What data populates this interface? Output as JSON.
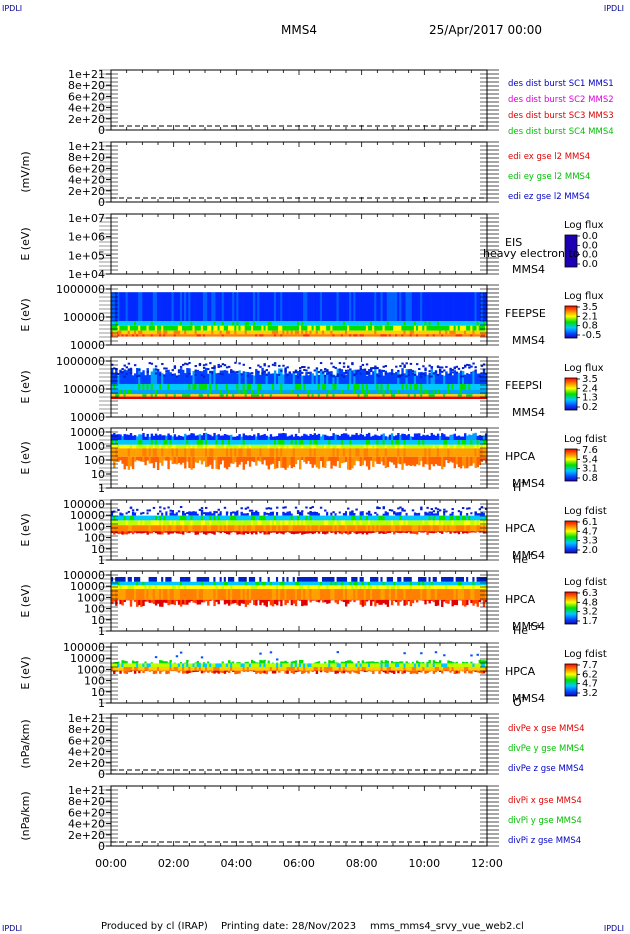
{
  "corners": {
    "tl": "IPDLI",
    "tr": "IPDLI",
    "bl": "IPDLI",
    "br": "IPDLI"
  },
  "header": {
    "mission": "MMS4",
    "date": "25/Apr/2017 00:00"
  },
  "footer": {
    "produced": "Produced by cl (IRAP)",
    "printing": "Printing date: 28/Nov/2023",
    "file": "mms_mms4_srvy_vue_web2.cl"
  },
  "colors": {
    "red": "#e00000",
    "green": "#00c000",
    "blue": "#0000c8",
    "magenta": "#e000e0",
    "axis": "#000000"
  },
  "chart_data": [
    {
      "type": "line",
      "id": "dist",
      "ylabel": "",
      "ticks": [
        "1e+21",
        "8e+20",
        "6e+20",
        "4e+20",
        "2e+20",
        "0"
      ],
      "legend": [
        {
          "text": "des dist burst SC1 MMS1",
          "color": "blue"
        },
        {
          "text": "des dist burst SC2 MMS2",
          "color": "magenta"
        },
        {
          "text": "des dist burst SC3 MMS3",
          "color": "red"
        },
        {
          "text": "des dist burst SC4 MMS4",
          "color": "green"
        }
      ]
    },
    {
      "type": "line",
      "id": "edi",
      "ylabel": "(mV/m)",
      "ticks": [
        "1e+21",
        "8e+20",
        "6e+20",
        "4e+20",
        "2e+20",
        "0"
      ],
      "legend": [
        {
          "text": "edi ex gse l2 MMS4",
          "color": "red"
        },
        {
          "text": "edi ey gse l2 MMS4",
          "color": "green"
        },
        {
          "text": "edi ez gse l2 MMS4",
          "color": "blue"
        }
      ]
    },
    {
      "type": "heatmap",
      "id": "eis",
      "ylabel": "E (eV)",
      "ticks": [
        "1e+07",
        "1e+06",
        "1e+05",
        "1e+04"
      ],
      "labels": [
        "EIS",
        "MMS4"
      ],
      "overlay": "heavy electron to",
      "cbtitle": "Log flux",
      "cbticks": [
        "0.0",
        "0.0",
        "0.0",
        "0.0"
      ],
      "empty": true
    },
    {
      "type": "heatmap",
      "id": "feepse",
      "ylabel": "E (eV)",
      "ticks": [
        "1000000",
        "100000",
        "10000"
      ],
      "labels": [
        "FEEPSE",
        "MMS4"
      ],
      "cbtitle": "Log flux",
      "cbticks": [
        "3.5",
        "2.1",
        "0.8",
        "-0.5"
      ]
    },
    {
      "type": "heatmap",
      "id": "feepsi",
      "ylabel": "E (eV)",
      "ticks": [
        "1000000",
        "100000",
        "10000"
      ],
      "labels": [
        "FEEPSI",
        "MMS4"
      ],
      "cbtitle": "Log flux",
      "cbticks": [
        "3.5",
        "2.4",
        "1.3",
        "0.2"
      ]
    },
    {
      "type": "heatmap",
      "id": "hpca_h",
      "ylabel": "E (eV)",
      "ticks": [
        "10000",
        "1000",
        "100",
        "10",
        "1"
      ],
      "labels": [
        "HPCA",
        "MMS4"
      ],
      "species": "H",
      "charge": "+",
      "cbtitle": "Log fdist",
      "cbticks": [
        "7.6",
        "5.4",
        "3.1",
        "0.8"
      ]
    },
    {
      "type": "heatmap",
      "id": "hpca_he",
      "ylabel": "E (eV)",
      "ticks": [
        "100000",
        "10000",
        "1000",
        "100",
        "10",
        "1"
      ],
      "labels": [
        "HPCA",
        "MMS4"
      ],
      "species": "He",
      "charge": "+",
      "cbtitle": "Log fdist",
      "cbticks": [
        "6.1",
        "4.7",
        "3.3",
        "2.0"
      ]
    },
    {
      "type": "heatmap",
      "id": "hpca_hepp",
      "ylabel": "E (eV)",
      "ticks": [
        "100000",
        "10000",
        "1000",
        "100",
        "10",
        "1"
      ],
      "labels": [
        "HPCA",
        "MMS4"
      ],
      "species": "He",
      "charge": "++",
      "cbtitle": "Log fdist",
      "cbticks": [
        "6.3",
        "4.8",
        "3.2",
        "1.7"
      ]
    },
    {
      "type": "heatmap",
      "id": "hpca_o",
      "ylabel": "E (eV)",
      "ticks": [
        "100000",
        "10000",
        "1000",
        "100",
        "10",
        "1"
      ],
      "labels": [
        "HPCA",
        "MMS4"
      ],
      "species": "O",
      "charge": "+",
      "cbtitle": "Log fdist",
      "cbticks": [
        "7.7",
        "6.2",
        "4.7",
        "3.2"
      ]
    },
    {
      "type": "line",
      "id": "divpe",
      "ylabel": "(nPa/km)",
      "ticks": [
        "1e+21",
        "8e+20",
        "6e+20",
        "4e+20",
        "2e+20",
        "0"
      ],
      "legend": [
        {
          "text": "divPe x gse MMS4",
          "color": "red"
        },
        {
          "text": "divPe y gse MMS4",
          "color": "green"
        },
        {
          "text": "divPe z gse MMS4",
          "color": "blue"
        }
      ]
    },
    {
      "type": "line",
      "id": "divpi",
      "ylabel": "(nPa/km)",
      "ticks": [
        "1e+21",
        "8e+20",
        "6e+20",
        "4e+20",
        "2e+20",
        "0"
      ],
      "legend": [
        {
          "text": "divPi x gse MMS4",
          "color": "red"
        },
        {
          "text": "divPi y gse MMS4",
          "color": "green"
        },
        {
          "text": "divPi z gse MMS4",
          "color": "blue"
        }
      ]
    }
  ],
  "x_axis": {
    "ticks": [
      "00:00",
      "02:00",
      "04:00",
      "06:00",
      "08:00",
      "10:00",
      "12:00"
    ]
  }
}
